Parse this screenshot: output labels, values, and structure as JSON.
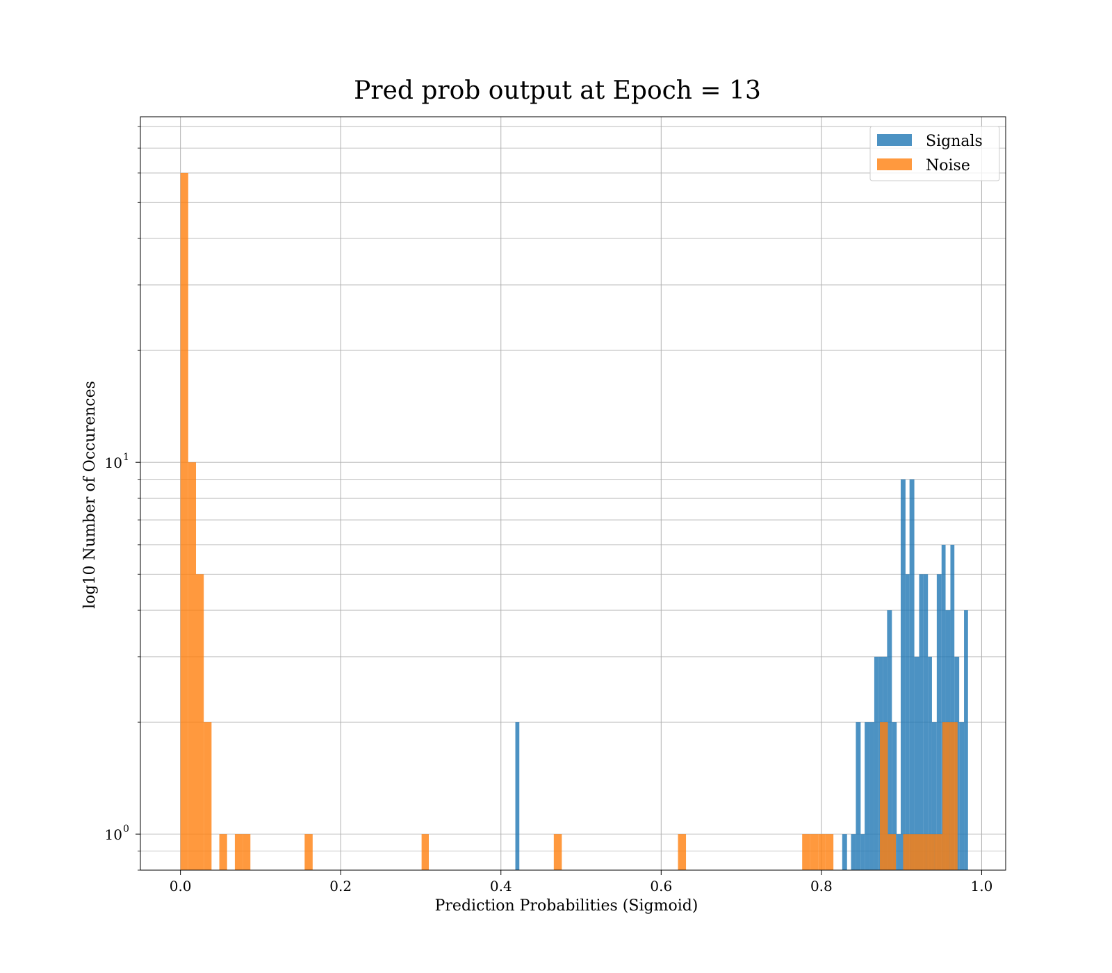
{
  "chart_data": {
    "type": "bar",
    "title": "Pred prob output at Epoch = 13",
    "xlabel": "Prediction Probabilities (Sigmoid)",
    "ylabel": "log10 Number of Occurences",
    "yscale": "log",
    "xlim": [
      -0.05,
      1.03
    ],
    "ylim": [
      0.8,
      85
    ],
    "x_ticks": [
      0.0,
      0.2,
      0.4,
      0.6,
      0.8,
      1.0
    ],
    "x_tick_labels": [
      "0.0",
      "0.2",
      "0.4",
      "0.6",
      "0.8",
      "1.0"
    ],
    "y_ticks": [
      1,
      10
    ],
    "y_tick_base": "10",
    "y_tick_exponents": [
      "0",
      "1"
    ],
    "grid": true,
    "legend_position": "top-right",
    "series": [
      {
        "name": "Signals",
        "color": "#1f77b4",
        "bins": [
          {
            "x0": 0.418,
            "x1": 0.423,
            "count": 2
          },
          {
            "x0": 0.826,
            "x1": 0.832,
            "count": 1
          },
          {
            "x0": 0.837,
            "x1": 0.843,
            "count": 1
          },
          {
            "x0": 0.843,
            "x1": 0.849,
            "count": 2
          },
          {
            "x0": 0.849,
            "x1": 0.854,
            "count": 1
          },
          {
            "x0": 0.854,
            "x1": 0.86,
            "count": 2
          },
          {
            "x0": 0.86,
            "x1": 0.866,
            "count": 2
          },
          {
            "x0": 0.866,
            "x1": 0.871,
            "count": 3
          },
          {
            "x0": 0.871,
            "x1": 0.877,
            "count": 3
          },
          {
            "x0": 0.877,
            "x1": 0.882,
            "count": 3
          },
          {
            "x0": 0.882,
            "x1": 0.888,
            "count": 4
          },
          {
            "x0": 0.888,
            "x1": 0.894,
            "count": 2
          },
          {
            "x0": 0.894,
            "x1": 0.899,
            "count": 1
          },
          {
            "x0": 0.899,
            "x1": 0.905,
            "count": 9
          },
          {
            "x0": 0.905,
            "x1": 0.91,
            "count": 5
          },
          {
            "x0": 0.91,
            "x1": 0.916,
            "count": 9
          },
          {
            "x0": 0.916,
            "x1": 0.922,
            "count": 3
          },
          {
            "x0": 0.922,
            "x1": 0.927,
            "count": 5
          },
          {
            "x0": 0.927,
            "x1": 0.933,
            "count": 5
          },
          {
            "x0": 0.933,
            "x1": 0.938,
            "count": 3
          },
          {
            "x0": 0.938,
            "x1": 0.944,
            "count": 2
          },
          {
            "x0": 0.944,
            "x1": 0.95,
            "count": 5
          },
          {
            "x0": 0.95,
            "x1": 0.955,
            "count": 6
          },
          {
            "x0": 0.955,
            "x1": 0.961,
            "count": 4
          },
          {
            "x0": 0.961,
            "x1": 0.966,
            "count": 6
          },
          {
            "x0": 0.966,
            "x1": 0.972,
            "count": 3
          },
          {
            "x0": 0.972,
            "x1": 0.978,
            "count": 2
          },
          {
            "x0": 0.978,
            "x1": 0.983,
            "count": 4
          }
        ]
      },
      {
        "name": "Noise",
        "color": "#ff7f0e",
        "bins": [
          {
            "x0": 0.0,
            "x1": 0.0097,
            "count": 60
          },
          {
            "x0": 0.0097,
            "x1": 0.0194,
            "count": 10
          },
          {
            "x0": 0.0194,
            "x1": 0.0291,
            "count": 5
          },
          {
            "x0": 0.0291,
            "x1": 0.0388,
            "count": 2
          },
          {
            "x0": 0.0485,
            "x1": 0.0582,
            "count": 1
          },
          {
            "x0": 0.0679,
            "x1": 0.0776,
            "count": 1
          },
          {
            "x0": 0.0776,
            "x1": 0.0873,
            "count": 1
          },
          {
            "x0": 0.155,
            "x1": 0.165,
            "count": 1
          },
          {
            "x0": 0.301,
            "x1": 0.31,
            "count": 1
          },
          {
            "x0": 0.466,
            "x1": 0.476,
            "count": 1
          },
          {
            "x0": 0.621,
            "x1": 0.631,
            "count": 1
          },
          {
            "x0": 0.776,
            "x1": 0.786,
            "count": 1
          },
          {
            "x0": 0.786,
            "x1": 0.796,
            "count": 1
          },
          {
            "x0": 0.796,
            "x1": 0.805,
            "count": 1
          },
          {
            "x0": 0.805,
            "x1": 0.815,
            "count": 1
          },
          {
            "x0": 0.873,
            "x1": 0.883,
            "count": 2
          },
          {
            "x0": 0.883,
            "x1": 0.893,
            "count": 1
          },
          {
            "x0": 0.902,
            "x1": 0.912,
            "count": 1
          },
          {
            "x0": 0.912,
            "x1": 0.922,
            "count": 1
          },
          {
            "x0": 0.922,
            "x1": 0.931,
            "count": 1
          },
          {
            "x0": 0.931,
            "x1": 0.941,
            "count": 1
          },
          {
            "x0": 0.941,
            "x1": 0.951,
            "count": 1
          },
          {
            "x0": 0.951,
            "x1": 0.96,
            "count": 2
          },
          {
            "x0": 0.96,
            "x1": 0.97,
            "count": 2
          }
        ]
      }
    ]
  }
}
